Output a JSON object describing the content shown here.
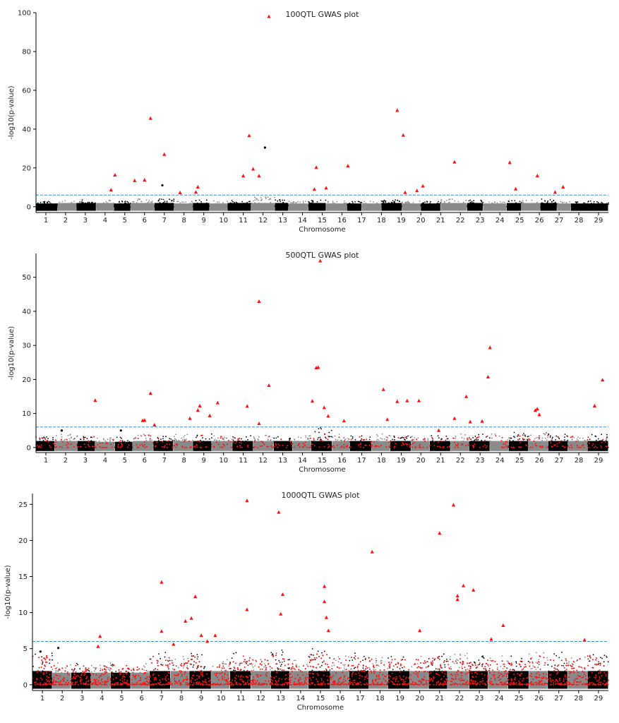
{
  "chart_data": [
    {
      "type": "scatter",
      "title": "100QTL GWAS plot",
      "xlabel": "Chromosome",
      "ylabel": "-log10(p-value)",
      "ylim": [
        -3,
        100
      ],
      "yticks": [
        0,
        20,
        40,
        60,
        80,
        100
      ],
      "threshold": 6,
      "categories": [
        "1",
        "2",
        "3",
        "4",
        "5",
        "6",
        "7",
        "8",
        "9",
        "10",
        "11",
        "12",
        "13",
        "14",
        "15",
        "16",
        "17",
        "18",
        "19",
        "20",
        "21",
        "22",
        "23",
        "24",
        "25",
        "26",
        "27",
        "28",
        "29"
      ],
      "chrom_extent": [
        0.5,
        29.5
      ],
      "chrom_starts": [
        0.5,
        1.6,
        2.55,
        3.55,
        4.45,
        5.3,
        6.5,
        7.5,
        8.45,
        9.3,
        10.2,
        11.4,
        12.6,
        13.3,
        14.3,
        15.2,
        16.25,
        17.0,
        18.0,
        19.05,
        20.0,
        21.0,
        22.35,
        23.15,
        24.35,
        25.1,
        26.05,
        26.9,
        27.6
      ],
      "max_noise": [
        3,
        3.5,
        3.5,
        3.5,
        3,
        4,
        4,
        3,
        3.5,
        3,
        3.5,
        5,
        3.5,
        3,
        3.5,
        3,
        3,
        3,
        3.5,
        3,
        3,
        4,
        3.5,
        3,
        3.5,
        3.5,
        4,
        3,
        3
      ],
      "series": [
        {
          "name": "",
          "color": "#ff1010",
          "marker": "triangle",
          "points": [
            [
              4.3,
              8.6
            ],
            [
              4.5,
              16.3
            ],
            [
              5.5,
              13.4
            ],
            [
              6.0,
              13.7
            ],
            [
              6.3,
              45.5
            ],
            [
              7.0,
              26.9
            ],
            [
              7.8,
              7.2
            ],
            [
              8.6,
              7.5
            ],
            [
              8.7,
              10.1
            ],
            [
              11.0,
              15.8
            ],
            [
              11.3,
              36.6
            ],
            [
              11.5,
              19.4
            ],
            [
              11.8,
              15.8
            ],
            [
              12.3,
              98.0
            ],
            [
              14.6,
              8.9
            ],
            [
              14.7,
              20.2
            ],
            [
              15.2,
              9.6
            ],
            [
              16.3,
              21.0
            ],
            [
              18.8,
              49.6
            ],
            [
              19.1,
              36.8
            ],
            [
              19.2,
              7.3
            ],
            [
              19.8,
              8.2
            ],
            [
              20.1,
              10.6
            ],
            [
              21.7,
              23.0
            ],
            [
              24.5,
              22.7
            ],
            [
              24.8,
              9.1
            ],
            [
              25.9,
              15.9
            ],
            [
              26.8,
              7.4
            ],
            [
              27.2,
              10.1
            ]
          ]
        },
        {
          "name": "",
          "color": "#000000",
          "marker": "dot",
          "points": [
            [
              6.9,
              11.0
            ],
            [
              12.1,
              30.5
            ]
          ]
        }
      ]
    },
    {
      "type": "scatter",
      "title": "500QTL GWAS plot",
      "xlabel": "Chromosome",
      "ylabel": "-log10(p-value)",
      "ylim": [
        -1.5,
        57
      ],
      "yticks": [
        0,
        10,
        20,
        30,
        40,
        50
      ],
      "threshold": 6,
      "categories": [
        "1",
        "2",
        "3",
        "4",
        "5",
        "6",
        "7",
        "8",
        "9",
        "10",
        "11",
        "12",
        "13",
        "14",
        "15",
        "16",
        "17",
        "18",
        "19",
        "20",
        "21",
        "22",
        "23",
        "24",
        "25",
        "26",
        "27",
        "28",
        "29"
      ],
      "chrom_extent": [
        0.5,
        29.5
      ],
      "chrom_starts": [
        0.5,
        1.45,
        2.6,
        3.5,
        4.5,
        5.4,
        6.45,
        7.45,
        8.45,
        9.4,
        10.45,
        11.5,
        12.55,
        13.5,
        14.45,
        15.5,
        16.4,
        17.5,
        18.45,
        19.5,
        20.45,
        21.5,
        22.45,
        23.5,
        24.45,
        25.45,
        26.45,
        27.45,
        28.45
      ],
      "max_noise": [
        3.5,
        4,
        3.5,
        3,
        3,
        4,
        3.5,
        4,
        4,
        4,
        3.5,
        4,
        3.5,
        3.5,
        6,
        4,
        3.5,
        4,
        3.5,
        3.5,
        4,
        4,
        4,
        4,
        4.5,
        4.5,
        4,
        3.5,
        4
      ],
      "series": [
        {
          "name": "",
          "color": "#ff1010",
          "marker": "triangle",
          "points": [
            [
              3.5,
              13.8
            ],
            [
              5.9,
              7.9
            ],
            [
              6.0,
              8.0
            ],
            [
              6.3,
              15.9
            ],
            [
              6.5,
              6.6
            ],
            [
              8.3,
              8.5
            ],
            [
              8.7,
              10.9
            ],
            [
              8.8,
              12.2
            ],
            [
              9.3,
              9.3
            ],
            [
              9.7,
              13.1
            ],
            [
              11.2,
              12.1
            ],
            [
              11.8,
              42.9
            ],
            [
              11.8,
              7.0
            ],
            [
              12.3,
              18.2
            ],
            [
              14.5,
              13.6
            ],
            [
              14.7,
              23.4
            ],
            [
              14.8,
              23.5
            ],
            [
              14.9,
              54.8
            ],
            [
              15.1,
              11.7
            ],
            [
              15.3,
              9.2
            ],
            [
              16.1,
              7.8
            ],
            [
              18.1,
              17.0
            ],
            [
              18.3,
              8.2
            ],
            [
              18.8,
              13.5
            ],
            [
              19.3,
              13.7
            ],
            [
              19.9,
              13.7
            ],
            [
              20.9,
              5.0
            ],
            [
              21.7,
              8.5
            ],
            [
              22.3,
              14.9
            ],
            [
              22.5,
              7.5
            ],
            [
              23.1,
              7.7
            ],
            [
              23.4,
              20.7
            ],
            [
              23.5,
              29.3
            ],
            [
              25.8,
              10.9
            ],
            [
              25.9,
              11.3
            ],
            [
              26.0,
              9.6
            ],
            [
              28.8,
              12.2
            ],
            [
              29.2,
              19.8
            ]
          ]
        },
        {
          "name": "",
          "color": "#000000",
          "marker": "dot",
          "points": [
            [
              1.8,
              5.0
            ],
            [
              4.8,
              5.0
            ]
          ]
        }
      ]
    },
    {
      "type": "scatter",
      "title": "1000QTL GWAS plot",
      "xlabel": "Chromosome",
      "ylabel": "-log10(p-value)",
      "ylim": [
        -0.8,
        26.5
      ],
      "yticks": [
        0,
        5,
        10,
        15,
        20,
        25
      ],
      "threshold": 6,
      "categories": [
        "1",
        "2",
        "3",
        "4",
        "5",
        "6",
        "7",
        "8",
        "9",
        "10",
        "11",
        "12",
        "13",
        "14",
        "15",
        "16",
        "17",
        "18",
        "19",
        "20",
        "21",
        "22",
        "23",
        "24",
        "25",
        "26",
        "27",
        "28",
        "29"
      ],
      "chrom_extent": [
        0.5,
        29.5
      ],
      "chrom_starts": [
        0.5,
        1.5,
        2.45,
        3.45,
        4.45,
        5.45,
        6.4,
        7.45,
        8.4,
        9.5,
        10.45,
        11.5,
        12.5,
        13.45,
        14.4,
        15.5,
        16.45,
        17.45,
        18.4,
        19.5,
        20.45,
        21.4,
        22.5,
        23.45,
        24.45,
        25.5,
        26.45,
        27.45,
        28.45
      ],
      "max_noise": [
        4.5,
        3,
        3,
        3,
        3,
        3,
        4.5,
        4,
        4.5,
        3.5,
        4.5,
        4,
        5,
        3.5,
        5,
        4,
        4.5,
        4,
        4,
        4,
        4.5,
        4.5,
        4,
        4,
        4,
        4.5,
        4.5,
        4,
        4.5
      ],
      "series": [
        {
          "name": "",
          "color": "#ff1010",
          "marker": "triangle",
          "points": [
            [
              3.8,
              5.3
            ],
            [
              3.9,
              6.7
            ],
            [
              7.0,
              14.2
            ],
            [
              7.0,
              7.4
            ],
            [
              7.6,
              5.6
            ],
            [
              8.2,
              8.8
            ],
            [
              8.5,
              9.2
            ],
            [
              8.7,
              12.2
            ],
            [
              9.0,
              6.8
            ],
            [
              9.3,
              6.0
            ],
            [
              9.7,
              6.8
            ],
            [
              11.3,
              25.5
            ],
            [
              11.3,
              10.4
            ],
            [
              12.9,
              23.9
            ],
            [
              13.0,
              9.8
            ],
            [
              13.1,
              12.5
            ],
            [
              15.2,
              13.6
            ],
            [
              15.2,
              11.5
            ],
            [
              15.3,
              9.3
            ],
            [
              15.4,
              7.5
            ],
            [
              17.6,
              18.4
            ],
            [
              20.0,
              7.5
            ],
            [
              21.0,
              21.0
            ],
            [
              21.7,
              24.9
            ],
            [
              21.9,
              12.3
            ],
            [
              21.9,
              11.8
            ],
            [
              22.2,
              13.7
            ],
            [
              22.7,
              13.1
            ],
            [
              23.6,
              6.3
            ],
            [
              24.2,
              8.2
            ],
            [
              28.3,
              6.2
            ]
          ]
        },
        {
          "name": "",
          "color": "#000000",
          "marker": "dot",
          "points": [
            [
              0.9,
              4.6
            ],
            [
              1.8,
              5.1
            ]
          ]
        }
      ]
    }
  ]
}
